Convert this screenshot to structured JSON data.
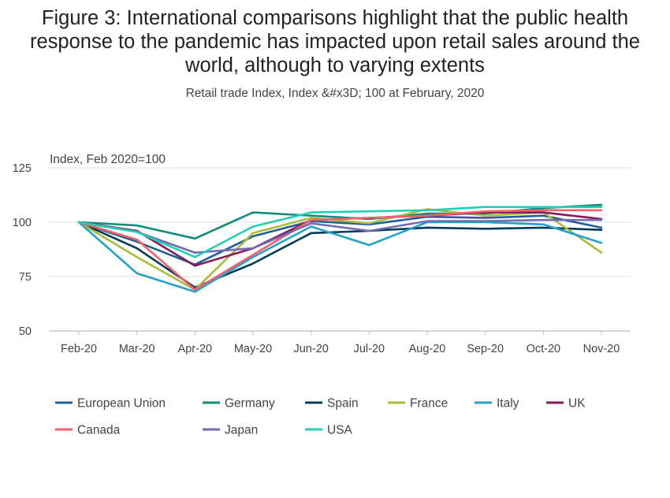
{
  "chart_data": {
    "type": "line",
    "title": "Figure 3: International comparisons highlight that the public health response to the pandemic has impacted upon retail sales around the world, although to varying extents",
    "subtitle": "Retail trade Index, Index &#x3D; 100 at February, 2020",
    "ylabel": "Index, Feb 2020=100",
    "xlabel": "",
    "categories": [
      "Feb-20",
      "Mar-20",
      "Apr-20",
      "May-20",
      "Jun-20",
      "Jul-20",
      "Aug-20",
      "Sep-20",
      "Oct-20",
      "Nov-20"
    ],
    "yticks": [
      125,
      100,
      75,
      50
    ],
    "ylim": [
      50,
      125
    ],
    "grid": true,
    "legend_position": "bottom",
    "series": [
      {
        "name": "European Union",
        "color": "#206095",
        "values": [
          100,
          91,
          80.5,
          93.5,
          100.5,
          99,
          102.5,
          102,
          103,
          97.5
        ]
      },
      {
        "name": "Germany",
        "color": "#118c7b",
        "values": [
          100,
          98.5,
          92.5,
          104.5,
          103,
          101.5,
          104,
          104,
          106.5,
          108
        ]
      },
      {
        "name": "Spain",
        "color": "#003c57",
        "values": [
          100,
          88,
          70,
          81,
          95,
          96,
          97.5,
          97,
          97.5,
          96.5
        ]
      },
      {
        "name": "France",
        "color": "#a8bd3a",
        "values": [
          100,
          84,
          69,
          95,
          102,
          99.5,
          106,
          103,
          104.5,
          86
        ]
      },
      {
        "name": "Italy",
        "color": "#27a0cc",
        "values": [
          100,
          76.5,
          68,
          84,
          98,
          89.5,
          100,
          100,
          99,
          90.5
        ]
      },
      {
        "name": "UK",
        "color": "#871a5b",
        "values": [
          100,
          96,
          80,
          88,
          101,
          102,
          103,
          104.5,
          104.5,
          101.5
        ]
      },
      {
        "name": "Canada",
        "color": "#f66068",
        "values": [
          100,
          92,
          69,
          85,
          101,
          102,
          103,
          105,
          105.5,
          105.5
        ]
      },
      {
        "name": "Japan",
        "color": "#746cb1",
        "values": [
          100,
          95.5,
          86,
          88,
          99.5,
          96,
          100.5,
          100.5,
          101,
          101
        ]
      },
      {
        "name": "USA",
        "color": "#22d0b6",
        "values": [
          100,
          95.5,
          84,
          98,
          104.5,
          105,
          105.5,
          107,
          107,
          107
        ]
      }
    ]
  }
}
